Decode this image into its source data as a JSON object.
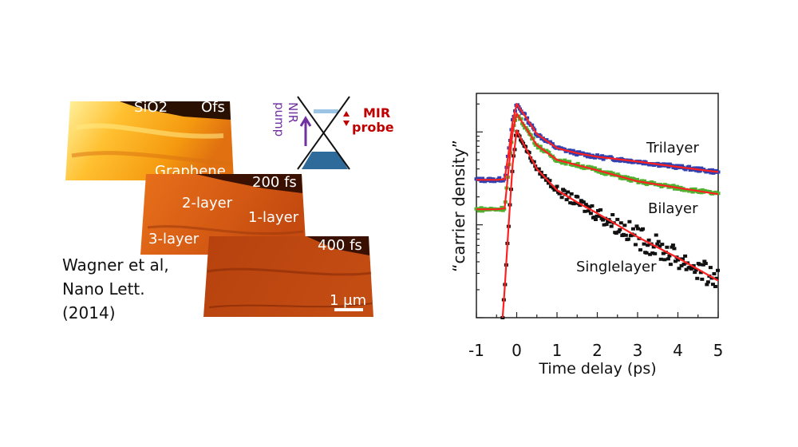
{
  "figure_left": {
    "panels": [
      {
        "time_label": "Ofs",
        "labels": [
          "SiO2",
          "Graphene"
        ]
      },
      {
        "time_label": "200 fs",
        "labels": [
          "2-layer",
          "1-layer",
          "3-layer"
        ]
      },
      {
        "time_label": "400 fs",
        "scale_bar": "1 μm"
      }
    ],
    "schematic": {
      "pump_label_1": "NIR",
      "pump_label_2": "pump",
      "probe_label_1": "MIR",
      "probe_label_2": "probe"
    },
    "citation": [
      "Wagner et al,",
      "Nano Lett.",
      "(2014)"
    ],
    "colors": {
      "pump": "#7030a0",
      "probe": "#c00000",
      "band": "#2e6a9a"
    }
  },
  "chart_data": {
    "type": "scatter",
    "xlabel": "Time delay (ps)",
    "ylabel": "“carrier density”",
    "y_scale": "log",
    "xlim": [
      -1,
      5
    ],
    "ylim": [
      1,
      260
    ],
    "xticks": [
      "-1",
      "0",
      "1",
      "2",
      "3",
      "4",
      "5"
    ],
    "grid": false,
    "fit_color": "#ff2020",
    "series": [
      {
        "name": "Trilayer",
        "color": "#3040b0",
        "x": [
          -1,
          -0.5,
          -0.3,
          -0.2,
          -0.1,
          0,
          0.2,
          0.5,
          1,
          1.5,
          2,
          3,
          4,
          5
        ],
        "y": [
          30.5,
          30.5,
          31,
          60,
          130,
          200,
          150,
          95,
          67,
          59,
          54,
          48,
          42,
          37
        ]
      },
      {
        "name": "Bilayer",
        "color": "#50b030",
        "x": [
          -1,
          -0.5,
          -0.3,
          -0.2,
          -0.1,
          0,
          0.2,
          0.5,
          1,
          1.5,
          2,
          3,
          4,
          5
        ],
        "y": [
          14.7,
          14.7,
          15,
          40,
          100,
          158,
          115,
          72,
          50,
          44,
          38.7,
          29.4,
          25,
          21.4
        ]
      },
      {
        "name": "Singlelayer",
        "color": "#111111",
        "x": [
          -0.35,
          -0.3,
          -0.2,
          -0.1,
          0,
          0.2,
          0.5,
          1,
          1.5,
          2,
          3,
          4,
          5
        ],
        "y": [
          1,
          2,
          10,
          45,
          104,
          70,
          40,
          23.6,
          17.5,
          13.3,
          7.4,
          4.4,
          2.5
        ]
      }
    ]
  }
}
